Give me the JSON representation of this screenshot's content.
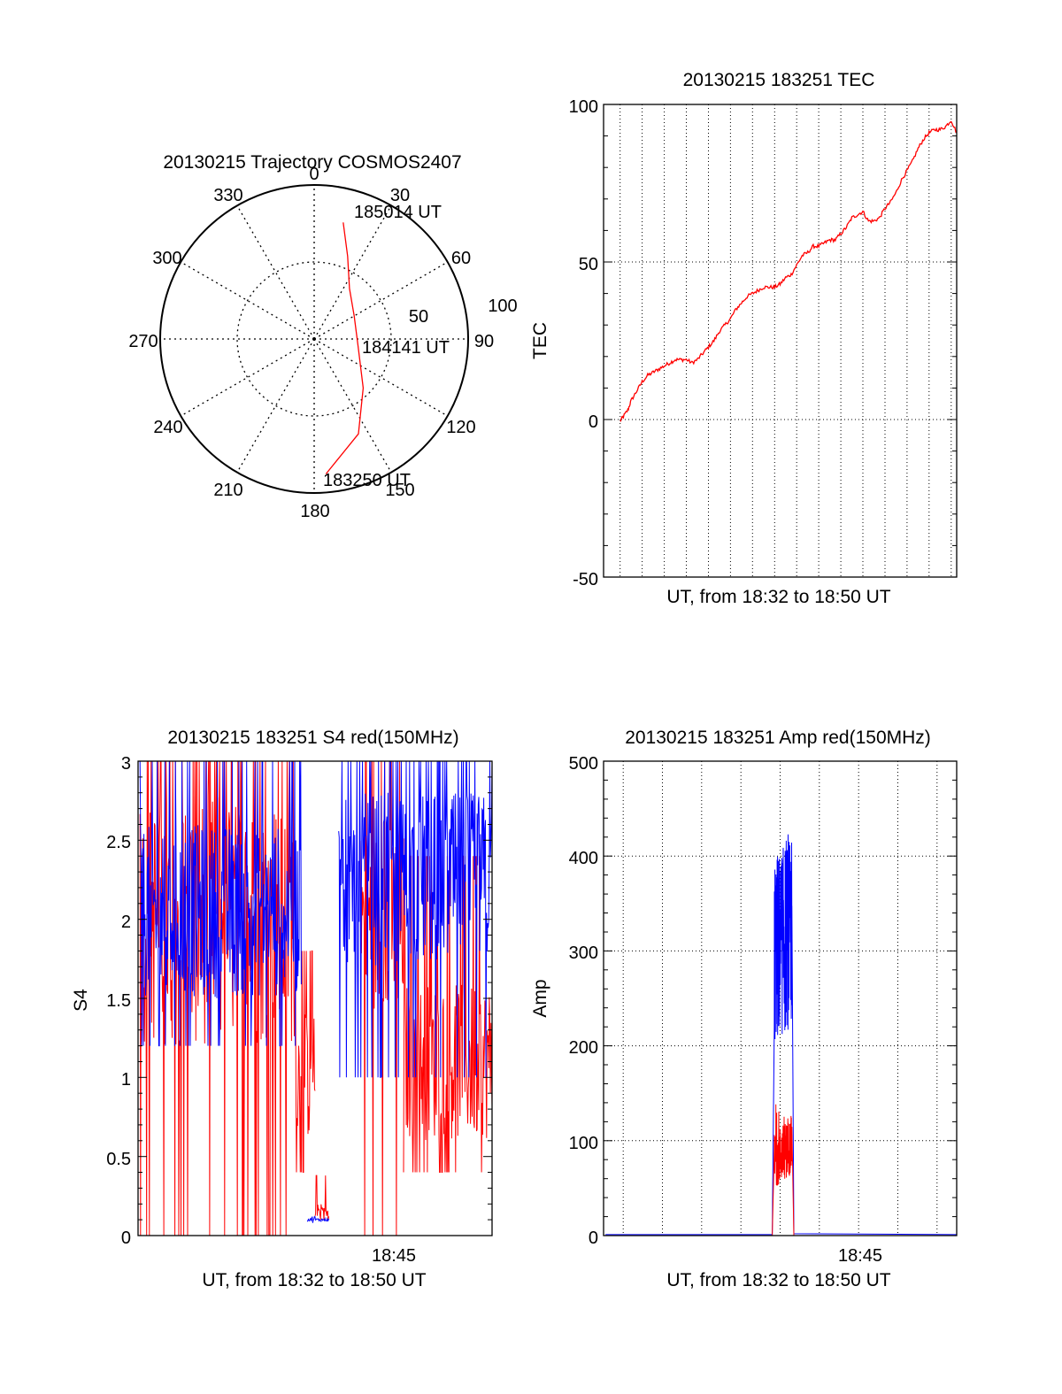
{
  "colors": {
    "red": "#ff0000",
    "blue": "#0000ff",
    "axis": "#000000",
    "grid": "#000000"
  },
  "polar": {
    "title": "20130215 Trajectory COSMOS2407",
    "azimuth_labels": [
      "0",
      "30",
      "60",
      "90",
      "120",
      "150",
      "180",
      "210",
      "240",
      "270",
      "300",
      "330"
    ],
    "radius_labels": [
      "50",
      "100"
    ],
    "time_labels": [
      "185014 UT",
      "184141 UT",
      "183250 UT"
    ]
  },
  "tec": {
    "title": "20130215 183251 TEC",
    "xlabel": "UT, from 18:32 to 18:50 UT",
    "ylabel": "TEC",
    "yticks": [
      "100",
      "50",
      "0",
      "-50"
    ]
  },
  "s4": {
    "title": "20130215 183251 S4 red(150MHz)",
    "xlabel": "UT, from 18:32 to 18:50 UT",
    "ylabel": "S4",
    "xtick": "18:45",
    "yticks": [
      "3",
      "2.5",
      "2",
      "1.5",
      "1",
      "0.5",
      "0"
    ]
  },
  "amp": {
    "title": "20130215 183251 Amp red(150MHz)",
    "xlabel": "UT, from 18:32 to 18:50 UT",
    "ylabel": "Amp",
    "xtick": "18:45",
    "yticks": [
      "500",
      "400",
      "300",
      "200",
      "100",
      "0"
    ]
  },
  "chart_data": [
    {
      "type": "scatter",
      "subtype": "polar-trajectory",
      "title": "20130215 Trajectory COSMOS2407",
      "radial_range": [
        0,
        100
      ],
      "grid": true,
      "series": [
        {
          "color": "#ff0000",
          "points": [
            {
              "az": 14,
              "r": 78
            },
            {
              "az": 22,
              "r": 58
            },
            {
              "az": 35,
              "r": 40
            },
            {
              "az": 60,
              "r": 30
            },
            {
              "az": 100,
              "r": 29
            },
            {
              "az": 135,
              "r": 45
            },
            {
              "az": 155,
              "r": 68
            },
            {
              "az": 175,
              "r": 88
            }
          ]
        }
      ]
    },
    {
      "type": "line",
      "title": "20130215 183251 TEC",
      "xlabel": "UT, from 18:32 to 18:50 UT",
      "ylabel": "TEC",
      "x_unit": "minutes UT",
      "xlim": [
        18.5,
        50.5
      ],
      "ylim": [
        -50,
        100
      ],
      "grid": true,
      "series": [
        {
          "color": "#ff0000",
          "x": [
            20.0,
            20.3,
            20.7,
            21.0,
            21.5,
            22.0,
            22.5,
            23.0,
            23.5,
            24.0,
            24.5,
            25.0,
            25.5,
            26.0,
            26.5,
            27.0,
            27.5,
            28.0,
            28.5,
            29.0,
            29.5,
            30.0,
            30.5,
            31.0,
            31.5,
            32.0,
            32.5,
            33.0,
            33.5,
            34.0,
            34.5,
            35.0,
            35.5,
            36.0,
            36.5,
            37.0,
            37.5,
            38.0,
            38.5,
            39.0,
            39.5,
            40.0,
            40.5,
            41.0,
            41.5,
            42.0,
            42.5,
            43.0,
            43.5,
            44.0,
            44.5,
            45.0,
            45.5,
            46.0,
            46.5,
            47.0,
            47.5,
            48.0,
            48.5,
            49.0,
            49.5,
            50.0,
            50.5
          ],
          "y": [
            -0.5,
            1,
            3,
            6,
            9,
            12,
            14,
            15,
            16,
            17,
            18,
            19,
            19,
            19,
            18,
            19,
            21,
            23,
            25,
            28,
            30,
            32,
            35,
            37,
            39,
            40,
            41,
            42,
            42,
            42,
            43,
            45,
            46,
            49,
            52,
            53,
            55,
            55,
            56,
            57,
            57,
            59,
            61,
            64,
            65,
            66,
            63,
            63,
            64,
            67,
            69,
            72,
            76,
            79,
            82,
            86,
            89,
            91,
            92,
            92,
            93,
            95,
            91
          ]
        }
      ]
    },
    {
      "type": "line",
      "title": "20130215 183251 S4 red(150MHz)",
      "xlabel": "UT, from 18:32 to 18:50 UT",
      "ylabel": "S4",
      "x_unit": "minutes UT",
      "xlim": [
        32,
        50
      ],
      "ylim": [
        0,
        3
      ],
      "x_ticks": [
        {
          "label": "18:45",
          "value": 45
        }
      ],
      "grid": false,
      "series": [
        {
          "color": "#ff0000",
          "segments": [
            {
              "x": [
                32.1,
                40.0
              ],
              "range": [
                0.0,
                3.0
              ],
              "typical": [
                1.2,
                2.8
              ]
            },
            {
              "x": [
                40.0,
                41.0
              ],
              "range": [
                0.4,
                1.8
              ],
              "typical": [
                0.6,
                1.4
              ]
            },
            {
              "x": [
                41.0,
                41.7
              ],
              "range": [
                0.1,
                0.38
              ],
              "typical": [
                0.12,
                0.2
              ]
            },
            {
              "x": [
                43.3,
                45.5
              ],
              "range": [
                0.0,
                3.0
              ],
              "typical": [
                1.4,
                2.6
              ]
            },
            {
              "x": [
                45.5,
                50.0
              ],
              "range": [
                0.4,
                2.4
              ],
              "typical": [
                0.6,
                1.6
              ]
            }
          ]
        },
        {
          "color": "#0000ff",
          "segments": [
            {
              "x": [
                32.1,
                40.3
              ],
              "range": [
                1.2,
                3.0
              ],
              "typical": [
                1.5,
                2.6
              ]
            },
            {
              "x": [
                40.6,
                41.7
              ],
              "range": [
                0.08,
                0.12
              ],
              "typical": [
                0.09,
                0.11
              ]
            },
            {
              "x": [
                42.2,
                50.0
              ],
              "range": [
                1.0,
                3.0
              ],
              "typical": [
                1.7,
                2.8
              ]
            }
          ]
        }
      ]
    },
    {
      "type": "line",
      "title": "20130215 183251 Amp red(150MHz)",
      "xlabel": "UT, from 18:32 to 18:50 UT",
      "ylabel": "Amp",
      "x_unit": "minutes UT",
      "xlim": [
        32,
        50
      ],
      "ylim": [
        0,
        500
      ],
      "x_ticks": [
        {
          "label": "18:45",
          "value": 45
        }
      ],
      "grid": true,
      "series": [
        {
          "color": "#0000ff",
          "x": [
            32.1,
            40.6,
            40.7,
            41.6,
            41.7,
            50.0
          ],
          "y": [
            1,
            1,
            300,
            320,
            2,
            1
          ],
          "peak": 430
        },
        {
          "color": "#ff0000",
          "x": [
            32.1,
            40.6,
            40.7,
            41.6,
            41.7,
            50.0
          ],
          "y": [
            0,
            0,
            80,
            95,
            0,
            0
          ],
          "peak": 140
        }
      ]
    }
  ]
}
